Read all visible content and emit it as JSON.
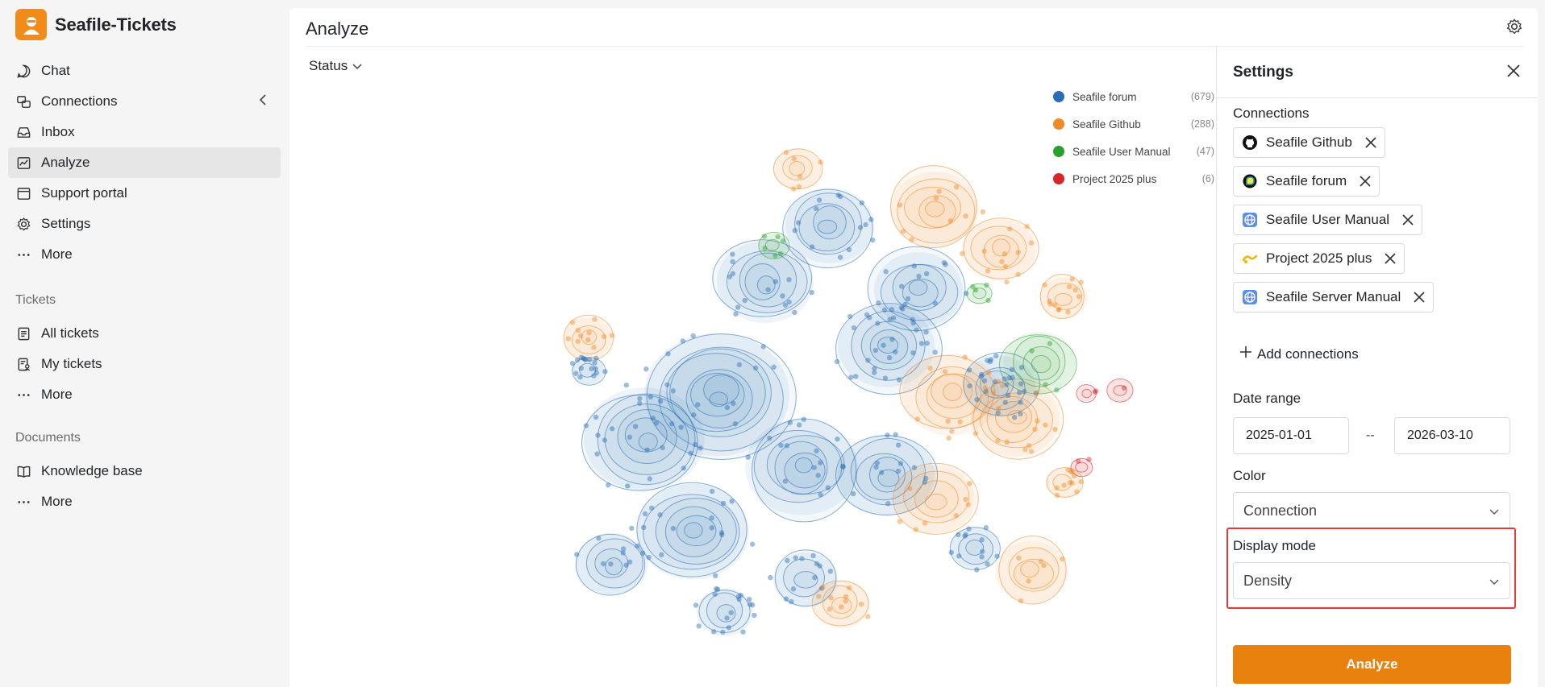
{
  "app": {
    "title": "Seafile-Tickets"
  },
  "sidebar": {
    "main_items": [
      {
        "label": "Chat",
        "icon": "chat-icon"
      },
      {
        "label": "Connections",
        "icon": "connections-icon"
      },
      {
        "label": "Inbox",
        "icon": "inbox-icon"
      },
      {
        "label": "Analyze",
        "icon": "analyze-icon",
        "active": true
      },
      {
        "label": "Support portal",
        "icon": "support-portal-icon"
      },
      {
        "label": "Settings",
        "icon": "gear-icon"
      },
      {
        "label": "More",
        "icon": "more-icon"
      }
    ],
    "tickets_section": "Tickets",
    "ticket_items": [
      {
        "label": "All tickets",
        "icon": "all-tickets-icon"
      },
      {
        "label": "My tickets",
        "icon": "my-tickets-icon"
      },
      {
        "label": "More",
        "icon": "more-icon"
      }
    ],
    "documents_section": "Documents",
    "document_items": [
      {
        "label": "Knowledge base",
        "icon": "book-icon"
      },
      {
        "label": "More",
        "icon": "more-icon"
      }
    ]
  },
  "page": {
    "title": "Analyze",
    "status_filter": "Status"
  },
  "legend": [
    {
      "label": "Seafile forum",
      "count": "(679)",
      "color": "#2a6fb5"
    },
    {
      "label": "Seafile Github",
      "count": "(288)",
      "color": "#f08a26"
    },
    {
      "label": "Seafile User Manual",
      "count": "(47)",
      "color": "#2ca02c"
    },
    {
      "label": "Project 2025 plus",
      "count": "(6)",
      "color": "#d62728"
    }
  ],
  "chart_data": {
    "type": "scatter",
    "series": [
      {
        "name": "Seafile forum",
        "count": 679,
        "color": "#2a6fb5"
      },
      {
        "name": "Seafile Github",
        "count": 288,
        "color": "#f08a26"
      },
      {
        "name": "Seafile User Manual",
        "count": 47,
        "color": "#2ca02c"
      },
      {
        "name": "Project 2025 plus",
        "count": 6,
        "color": "#d62728"
      }
    ],
    "display_mode": "Density",
    "legend_position": "top-right"
  },
  "settings": {
    "title": "Settings",
    "connections_label": "Connections",
    "connections": [
      {
        "label": "Seafile Github",
        "icon": "github-icon"
      },
      {
        "label": "Seafile forum",
        "icon": "discourse-icon"
      },
      {
        "label": "Seafile User Manual",
        "icon": "globe-icon"
      },
      {
        "label": "Project 2025 plus",
        "icon": "project-icon"
      },
      {
        "label": "Seafile Server Manual",
        "icon": "globe-icon"
      }
    ],
    "add_connections": "Add connections",
    "date_range_label": "Date range",
    "date_from": "2025-01-01",
    "date_sep": "--",
    "date_to": "2026-03-10",
    "color_label": "Color",
    "color_value": "Connection",
    "display_mode_label": "Display mode",
    "display_mode_value": "Density",
    "analyze_button": "Analyze"
  }
}
